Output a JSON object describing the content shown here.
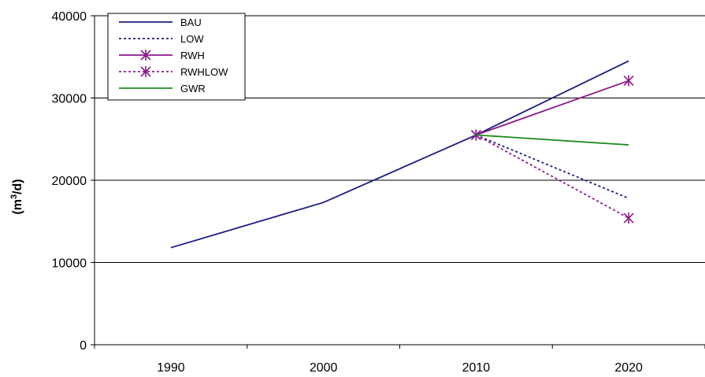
{
  "chart_data": {
    "type": "line",
    "categories": [
      "1990",
      "2000",
      "2010",
      "2020"
    ],
    "ylabel": "(m³/d)",
    "ylim": [
      0,
      40000
    ],
    "yticks": [
      0,
      10000,
      20000,
      30000,
      40000
    ],
    "grid": true,
    "legend_position": "top-left",
    "series": [
      {
        "name": "BAU",
        "values": [
          11800,
          17300,
          25500,
          34500
        ],
        "color": "#1c1c80",
        "dash": "solid",
        "marker": "none"
      },
      {
        "name": "LOW",
        "values": [
          null,
          null,
          25500,
          17800
        ],
        "color": "#1c1c80",
        "dash": "dotted",
        "marker": "none"
      },
      {
        "name": "RWH",
        "values": [
          null,
          null,
          25500,
          32100
        ],
        "color": "#8b1a8b",
        "dash": "solid",
        "marker": "asterisk"
      },
      {
        "name": "RWHLOW",
        "values": [
          null,
          null,
          25500,
          15400
        ],
        "color": "#8b1a8b",
        "dash": "dotted",
        "marker": "asterisk"
      },
      {
        "name": "GWR",
        "values": [
          null,
          null,
          25500,
          24300
        ],
        "color": "#1f8a1f",
        "dash": "solid",
        "marker": "none"
      }
    ]
  }
}
